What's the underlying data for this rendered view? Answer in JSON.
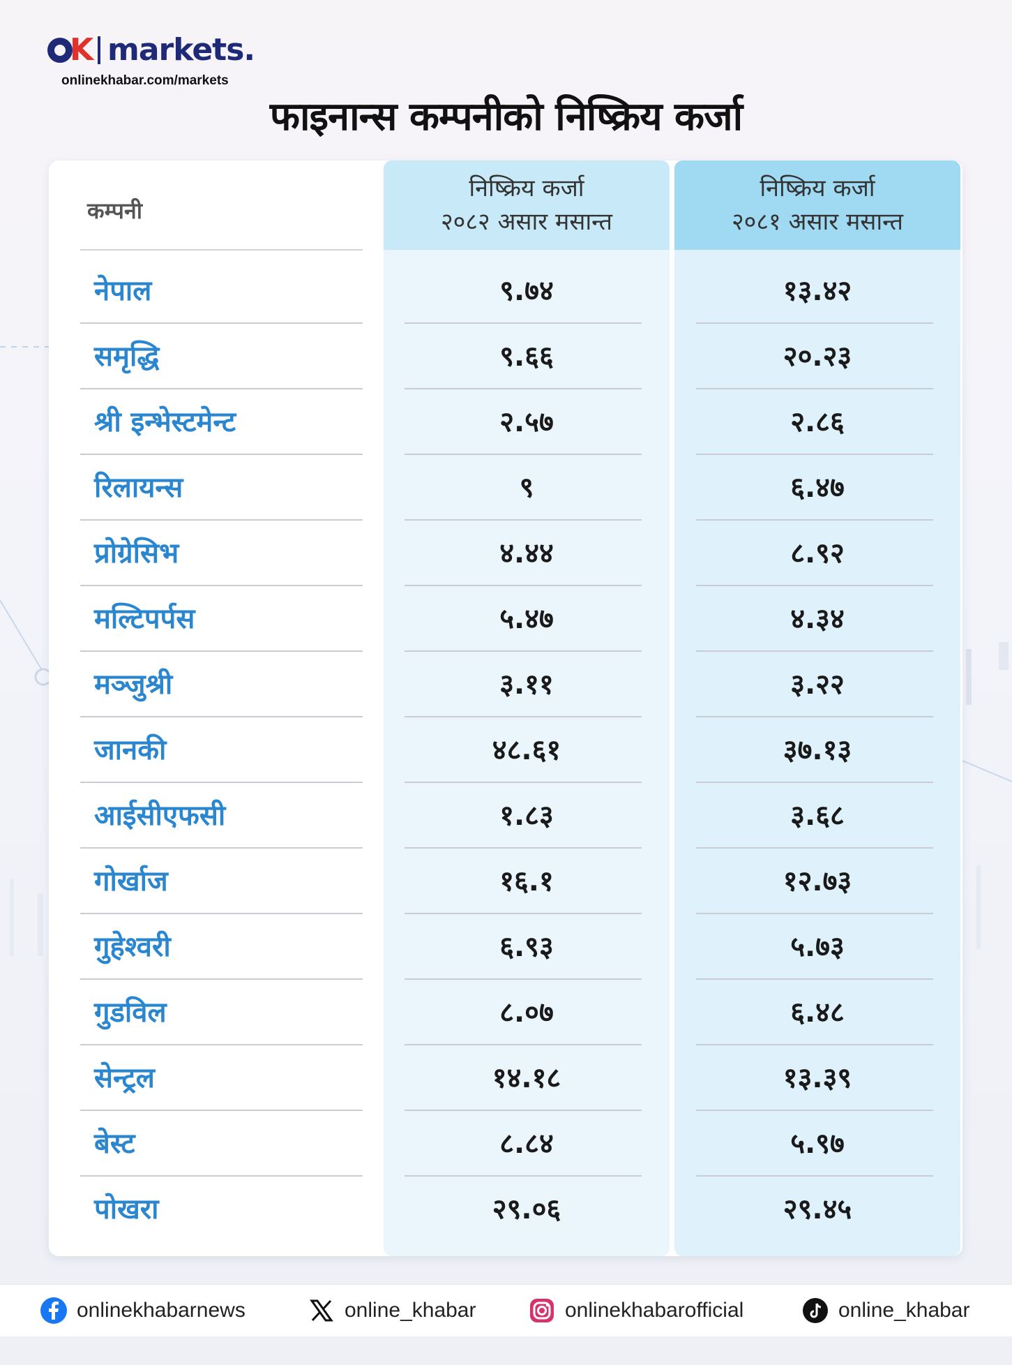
{
  "brand": {
    "logo_text": "OK markets.",
    "url": "onlinekhabar.com/markets"
  },
  "title": "फाइनान्स कम्पनीको निष्क्रिय कर्जा",
  "table": {
    "header": {
      "company": "कम्पनी",
      "col1_line1": "निष्क्रिय कर्जा",
      "col1_line2": "२०८२ असार मसान्त",
      "col2_line1": "निष्क्रिय कर्जा",
      "col2_line2": "२०८१ असार मसान्त"
    },
    "rows": [
      {
        "name": "नेपाल",
        "v2082": "९.७४",
        "v2081": "१३.४२"
      },
      {
        "name": "समृद्धि",
        "v2082": "९.६६",
        "v2081": "२०.२३"
      },
      {
        "name": "श्री इन्भेस्टमेन्ट",
        "v2082": "२.५७",
        "v2081": "२.८६"
      },
      {
        "name": "रिलायन्स",
        "v2082": "९",
        "v2081": "६.४७"
      },
      {
        "name": "प्रोग्रेसिभ",
        "v2082": "४.४४",
        "v2081": "८.९२"
      },
      {
        "name": "मल्टिपर्पस",
        "v2082": "५.४७",
        "v2081": "४.३४"
      },
      {
        "name": "मञ्जुश्री",
        "v2082": "३.११",
        "v2081": "३.२२"
      },
      {
        "name": "जानकी",
        "v2082": "४८.६१",
        "v2081": "३७.१३"
      },
      {
        "name": "आईसीएफसी",
        "v2082": "१.८३",
        "v2081": "३.६८"
      },
      {
        "name": "गोर्खाज",
        "v2082": "१६.१",
        "v2081": "१२.७३"
      },
      {
        "name": "गुहेश्वरी",
        "v2082": "६.९३",
        "v2081": "५.७३"
      },
      {
        "name": "गुडविल",
        "v2082": "८.०७",
        "v2081": "६.४८"
      },
      {
        "name": "सेन्ट्रल",
        "v2082": "१४.१८",
        "v2081": "१३.३९"
      },
      {
        "name": "बेस्ट",
        "v2082": "८.८४",
        "v2081": "५.९७"
      },
      {
        "name": "पोखरा",
        "v2082": "२९.०६",
        "v2081": "२९.४५"
      }
    ]
  },
  "footer": {
    "facebook": "onlinekhabarnews",
    "x": "online_khabar",
    "instagram": "onlinekhabarofficial",
    "tiktok": "online_khabar"
  },
  "colors": {
    "brand_navy": "#1e2a78",
    "brand_red": "#e0312b",
    "company_blue": "#2a86cf",
    "col1_header": "#c8e9f7",
    "col2_header": "#9fd9f2"
  }
}
